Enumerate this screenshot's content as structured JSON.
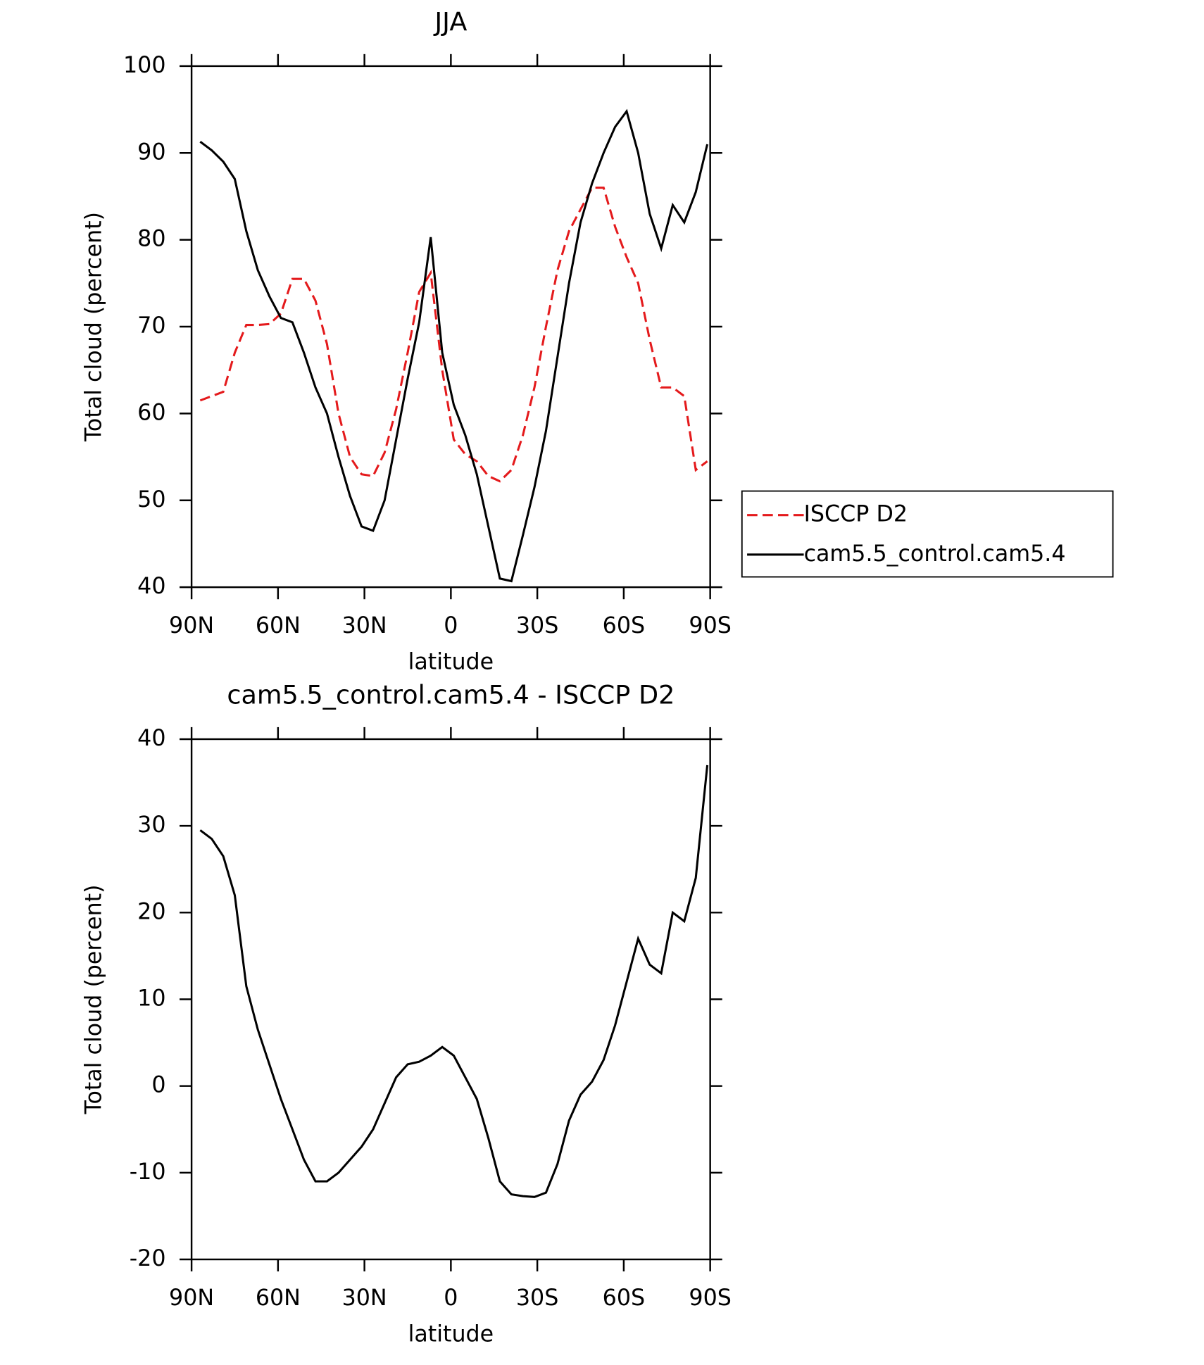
{
  "chart_data": [
    {
      "type": "line",
      "title": "JJA",
      "xlabel": "latitude",
      "ylabel": "Total cloud (percent)",
      "x": [
        87,
        83,
        79,
        75,
        71,
        67,
        63,
        59,
        55,
        51,
        47,
        43,
        39,
        35,
        31,
        27,
        23,
        19,
        15,
        11,
        7,
        3,
        -1,
        -5,
        -9,
        -13,
        -17,
        -21,
        -25,
        -29,
        -33,
        -37,
        -41,
        -45,
        -49,
        -53,
        -57,
        -61,
        -65,
        -69,
        -73,
        -77,
        -81,
        -85,
        -89
      ],
      "series": [
        {
          "name": "ISCCP D2",
          "color": "#e41a1c",
          "dash": true,
          "values": [
            61.5,
            62,
            62.5,
            67,
            70.2,
            70.2,
            70.3,
            71.5,
            75.5,
            75.5,
            73,
            68,
            60,
            55,
            53,
            52.8,
            55.5,
            60.5,
            67,
            74,
            76.2,
            65,
            57,
            55.3,
            54.5,
            52.8,
            52.2,
            53.5,
            57.5,
            63,
            70,
            76.5,
            81,
            83.5,
            86,
            86,
            81.5,
            78,
            75,
            68.5,
            63,
            63,
            62,
            53.5,
            54.5
          ]
        },
        {
          "name": "cam5.5_control.cam5.4",
          "color": "#000000",
          "dash": false,
          "values": [
            91.3,
            90.3,
            89,
            87,
            81,
            76.5,
            73.5,
            71,
            70.5,
            67,
            63,
            60,
            55,
            50.5,
            47,
            46.5,
            50,
            57,
            64,
            70.5,
            80.3,
            67,
            61,
            57.5,
            53,
            47,
            41,
            40.7,
            46,
            51.5,
            58,
            66.5,
            75,
            82,
            86.5,
            90,
            93,
            94.8,
            90,
            83,
            79,
            84,
            82,
            85.5,
            91
          ]
        }
      ],
      "xlim": [
        90,
        -90
      ],
      "xticks": [
        {
          "value": 90,
          "label": "90N"
        },
        {
          "value": 60,
          "label": "60N"
        },
        {
          "value": 30,
          "label": "30N"
        },
        0,
        {
          "value": -30,
          "label": "30S"
        },
        {
          "value": -60,
          "label": "60S"
        },
        {
          "value": -90,
          "label": "90S"
        }
      ],
      "ylim": [
        40,
        100
      ],
      "yticks": [
        40,
        50,
        60,
        70,
        80,
        90,
        100
      ],
      "legend": "right"
    },
    {
      "type": "line",
      "title": "cam5.5_control.cam5.4 - ISCCP D2",
      "xlabel": "latitude",
      "ylabel": "Total cloud (percent)",
      "x": [
        87,
        83,
        79,
        75,
        71,
        67,
        63,
        59,
        55,
        51,
        47,
        43,
        39,
        35,
        31,
        27,
        23,
        19,
        15,
        11,
        7,
        3,
        -1,
        -5,
        -9,
        -13,
        -17,
        -21,
        -25,
        -29,
        -33,
        -37,
        -41,
        -45,
        -49,
        -53,
        -57,
        -61,
        -65,
        -69,
        -73,
        -77,
        -81,
        -85,
        -89
      ],
      "series": [
        {
          "color": "#000000",
          "dash": false,
          "values": [
            29.5,
            28.5,
            26.5,
            22,
            11.5,
            6.5,
            2.5,
            -1.5,
            -5,
            -8.5,
            -11,
            -11,
            -10,
            -8.5,
            -7,
            -5,
            -2,
            1,
            2.5,
            2.8,
            3.5,
            4.5,
            3.5,
            1,
            -1.5,
            -6,
            -11,
            -12.5,
            -12.7,
            -12.8,
            -12.3,
            -9,
            -4,
            -1,
            0.5,
            3,
            7,
            12,
            17,
            14,
            13,
            20,
            19,
            24,
            37
          ]
        }
      ],
      "xlim": [
        90,
        -90
      ],
      "xticks": [
        {
          "value": 90,
          "label": "90N"
        },
        {
          "value": 60,
          "label": "60N"
        },
        {
          "value": 30,
          "label": "30N"
        },
        0,
        {
          "value": -30,
          "label": "30S"
        },
        {
          "value": -60,
          "label": "60S"
        },
        {
          "value": -90,
          "label": "90S"
        }
      ],
      "ylim": [
        -20,
        40
      ],
      "yticks": [
        -20,
        -10,
        0,
        10,
        20,
        30,
        40
      ]
    }
  ]
}
